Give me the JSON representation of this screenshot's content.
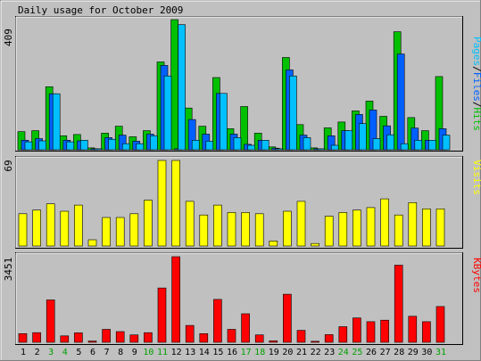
{
  "chart_data": [
    {
      "type": "bar",
      "title": "Daily usage for October 2009",
      "panel": "top",
      "ymax_label": "409",
      "ylim": [
        0,
        409
      ],
      "categories": [
        "1",
        "2",
        "3",
        "4",
        "5",
        "6",
        "7",
        "8",
        "9",
        "10",
        "11",
        "12",
        "13",
        "14",
        "15",
        "16",
        "17",
        "18",
        "19",
        "20",
        "21",
        "22",
        "23",
        "24",
        "25",
        "26",
        "27",
        "28",
        "29",
        "30",
        "31"
      ],
      "weekend_days": [
        "3",
        "4",
        "10",
        "11",
        "17",
        "18",
        "24",
        "25",
        "31"
      ],
      "series": [
        {
          "name": "Hits",
          "color": "#00c000",
          "values": [
            57,
            60,
            198,
            44,
            48,
            6,
            52,
            74,
            41,
            60,
            276,
            409,
            131,
            74,
            227,
            66,
            136,
            52,
            9,
            290,
            79,
            6,
            69,
            87,
            122,
            153,
            105,
            371,
            101,
            60,
            230
          ]
        },
        {
          "name": "Files",
          "color": "#0060ff",
          "values": [
            30,
            35,
            176,
            30,
            28,
            3,
            38,
            46,
            27,
            49,
            265,
            3,
            95,
            49,
            177,
            49,
            17,
            30,
            5,
            251,
            46,
            3,
            44,
            60,
            111,
            125,
            75,
            301,
            68,
            30,
            66
          ]
        },
        {
          "name": "Pages",
          "color": "#00c0ff",
          "values": [
            25,
            28,
            176,
            25,
            30,
            3,
            33,
            19,
            19,
            44,
            232,
            393,
            30,
            27,
            177,
            38,
            14,
            30,
            3,
            232,
            38,
            3,
            14,
            60,
            82,
            35,
            47,
            19,
            30,
            30,
            46
          ]
        }
      ],
      "legend_labels": [
        "Pages",
        "/",
        "Files",
        "/",
        "Hits"
      ],
      "legend_colors": [
        "#00c0ff",
        "#000000",
        "#0060ff",
        "#000000",
        "#00c000"
      ],
      "legend_position": "right"
    },
    {
      "type": "bar",
      "panel": "middle",
      "ymax_label": "69",
      "ylim": [
        0,
        69
      ],
      "series": [
        {
          "name": "Visits",
          "color": "#ffff00",
          "values": [
            26,
            29,
            34,
            28,
            33,
            5,
            23,
            23,
            26,
            37,
            69,
            69,
            36,
            25,
            33,
            27,
            27,
            26,
            4,
            28,
            36,
            2,
            24,
            27,
            29,
            31,
            38,
            25,
            35,
            30,
            30
          ]
        }
      ],
      "legend_labels": [
        "Visits"
      ],
      "legend_colors": [
        "#ffff00"
      ],
      "legend_position": "right"
    },
    {
      "type": "bar",
      "panel": "bottom",
      "ymax_label": "3451",
      "ylim": [
        0,
        3451
      ],
      "series": [
        {
          "name": "KBytes",
          "color": "#ff0000",
          "values": [
            350,
            390,
            1709,
            260,
            380,
            50,
            520,
            430,
            300,
            390,
            2189,
            3451,
            680,
            350,
            1730,
            520,
            1150,
            300,
            60,
            1939,
            480,
            40,
            310,
            630,
            980,
            830,
            890,
            3110,
            1050,
            830,
            1440
          ]
        }
      ],
      "legend_labels": [
        "KBytes"
      ],
      "legend_colors": [
        "#ff0000"
      ],
      "legend_position": "right"
    }
  ]
}
